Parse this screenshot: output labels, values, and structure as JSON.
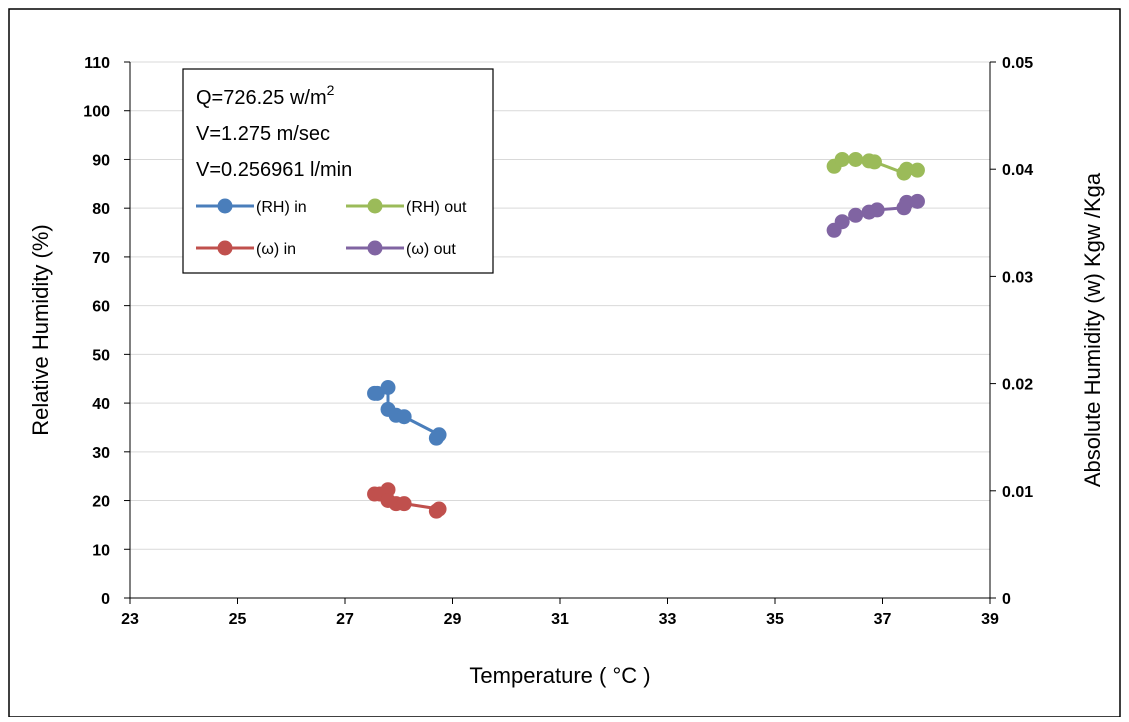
{
  "chart_data": {
    "type": "scatter",
    "xlabel": "Temperature ( °C )",
    "ylabel": "Relative Humidity (%)",
    "y2label": "Absolute Humidity (w) Kgw /Kga",
    "xlim": [
      23,
      39
    ],
    "ylim": [
      0,
      110
    ],
    "y2lim": [
      0,
      0.05
    ],
    "x_ticks": [
      "23",
      "25",
      "27",
      "29",
      "31",
      "33",
      "35",
      "37",
      "39"
    ],
    "y_ticks": [
      "0",
      "10",
      "20",
      "30",
      "40",
      "50",
      "60",
      "70",
      "80",
      "90",
      "100",
      "110"
    ],
    "y2_ticks": [
      "0",
      "0.01",
      "0.02",
      "0.03",
      "0.04",
      "0.05"
    ],
    "grid": "horizontal",
    "legend_position": "top-left",
    "annotations": [
      "Q=726.25 w/m",
      "2",
      "V=1.275 m/sec",
      "V=0.256961 l/min"
    ],
    "series": [
      {
        "name": "(RH) in",
        "axis": "left",
        "color": "#4a7ebb",
        "points": [
          [
            27.6,
            42
          ],
          [
            27.55,
            42
          ],
          [
            27.8,
            43.2
          ],
          [
            27.8,
            38.7
          ],
          [
            27.95,
            37.5
          ],
          [
            28.1,
            37.2
          ],
          [
            28.75,
            33.5
          ],
          [
            28.7,
            32.8
          ]
        ]
      },
      {
        "name": "(RH) out",
        "axis": "left",
        "color": "#9bbb59",
        "points": [
          [
            36.1,
            88.6
          ],
          [
            36.25,
            90
          ],
          [
            36.5,
            90
          ],
          [
            36.75,
            89.7
          ],
          [
            36.85,
            89.5
          ],
          [
            37.4,
            87.2
          ],
          [
            37.45,
            88
          ],
          [
            37.65,
            87.8
          ]
        ]
      },
      {
        "name": "(ω) in",
        "axis": "right",
        "color": "#c0504d",
        "points": [
          [
            27.55,
            0.0097
          ],
          [
            27.65,
            0.0097
          ],
          [
            27.8,
            0.0101
          ],
          [
            27.8,
            0.0091
          ],
          [
            27.95,
            0.0088
          ],
          [
            28.1,
            0.0088
          ],
          [
            28.75,
            0.0083
          ],
          [
            28.7,
            0.0081
          ]
        ]
      },
      {
        "name": "(ω) out",
        "axis": "right",
        "color": "#8064a2",
        "points": [
          [
            36.1,
            0.0343
          ],
          [
            36.25,
            0.0351
          ],
          [
            36.5,
            0.0357
          ],
          [
            36.75,
            0.036
          ],
          [
            36.9,
            0.0362
          ],
          [
            37.4,
            0.0364
          ],
          [
            37.45,
            0.0369
          ],
          [
            37.65,
            0.037
          ]
        ]
      }
    ]
  }
}
